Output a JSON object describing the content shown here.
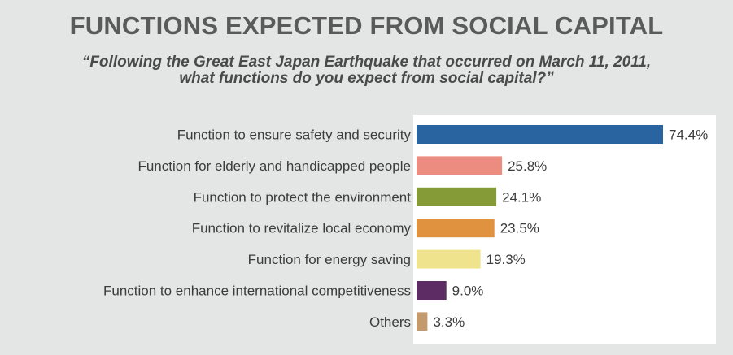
{
  "chart_data": {
    "type": "bar",
    "orientation": "horizontal",
    "title": "FUNCTIONS EXPECTED FROM SOCIAL CAPITAL",
    "subtitle_lines": [
      "“Following the Great East Japan Earthquake that occurred on March 11, 2011,",
      "what functions do you expect from social capital?”"
    ],
    "categories": [
      "Function to ensure safety and security",
      "Function for elderly and handicapped people",
      "Function to protect the environment",
      "Function to revitalize local economy",
      "Function for energy saving",
      "Function to enhance international competitiveness",
      "Others"
    ],
    "values": [
      74.4,
      25.8,
      24.1,
      23.5,
      19.3,
      9.0,
      3.3
    ],
    "value_labels": [
      "74.4%",
      "25.8%",
      "24.1%",
      "23.5%",
      "19.3%",
      "9.0%",
      "3.3%"
    ],
    "bar_colors": [
      "#2a64a0",
      "#ec8c80",
      "#849b37",
      "#e0923e",
      "#efe38e",
      "#5d2c64",
      "#c49a6c"
    ],
    "xlim": [
      0,
      74.4
    ],
    "grid": false,
    "legend": "none"
  }
}
